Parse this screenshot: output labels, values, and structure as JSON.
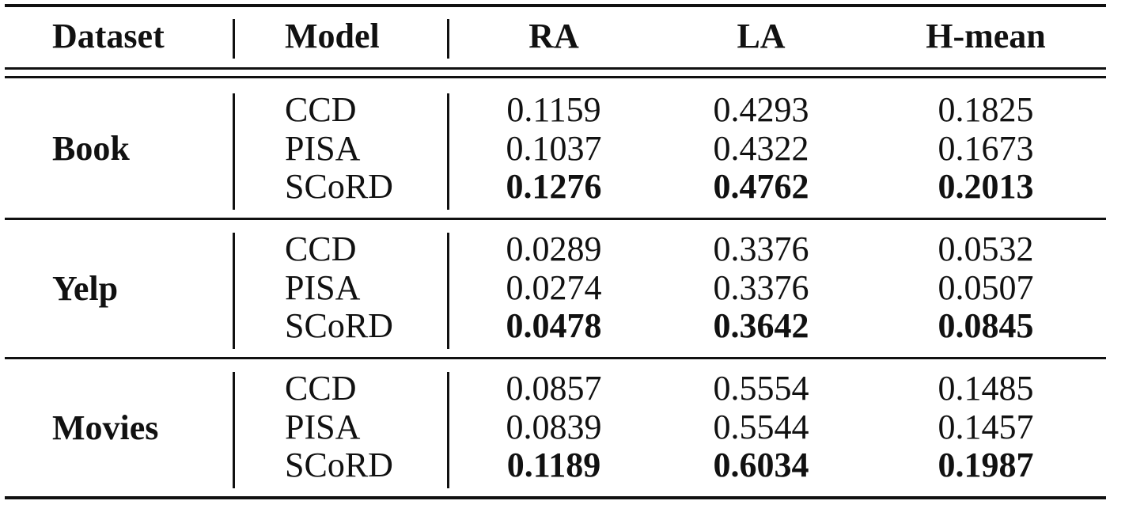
{
  "headers": {
    "dataset": "Dataset",
    "model": "Model",
    "ra": "RA",
    "la": "LA",
    "hmean": "H-mean"
  },
  "groups": [
    {
      "dataset": "Book",
      "rows": [
        {
          "model": "CCD",
          "ra": "0.1159",
          "la": "0.4293",
          "hmean": "0.1825"
        },
        {
          "model": "PISA",
          "ra": "0.1037",
          "la": "0.4322",
          "hmean": "0.1673"
        },
        {
          "model": "SCoRD",
          "ra": "0.1276",
          "la": "0.4762",
          "hmean": "0.2013"
        }
      ]
    },
    {
      "dataset": "Yelp",
      "rows": [
        {
          "model": "CCD",
          "ra": "0.0289",
          "la": "0.3376",
          "hmean": "0.0532"
        },
        {
          "model": "PISA",
          "ra": "0.0274",
          "la": "0.3376",
          "hmean": "0.0507"
        },
        {
          "model": "SCoRD",
          "ra": "0.0478",
          "la": "0.3642",
          "hmean": "0.0845"
        }
      ]
    },
    {
      "dataset": "Movies",
      "rows": [
        {
          "model": "CCD",
          "ra": "0.0857",
          "la": "0.5554",
          "hmean": "0.1485"
        },
        {
          "model": "PISA",
          "ra": "0.0839",
          "la": "0.5544",
          "hmean": "0.1457"
        },
        {
          "model": "SCoRD",
          "ra": "0.1189",
          "la": "0.6034",
          "hmean": "0.1987"
        }
      ]
    }
  ]
}
